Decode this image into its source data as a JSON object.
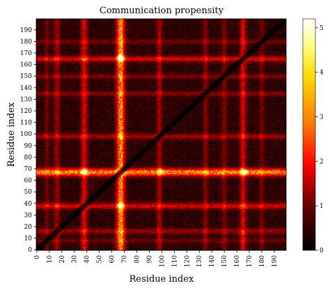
{
  "chart_data": {
    "type": "heatmap",
    "title": "Communication propensity",
    "xlabel": "Residue index",
    "ylabel": "Residue index",
    "x_range": [
      0,
      199
    ],
    "y_range": [
      0,
      199
    ],
    "xticks": [
      0,
      10,
      20,
      30,
      40,
      50,
      60,
      70,
      80,
      90,
      100,
      110,
      120,
      130,
      140,
      150,
      160,
      170,
      180,
      190
    ],
    "yticks": [
      0,
      10,
      20,
      30,
      40,
      50,
      60,
      70,
      80,
      90,
      100,
      110,
      120,
      130,
      140,
      150,
      160,
      170,
      180,
      190
    ],
    "colormap": "hot",
    "colorbar": {
      "range": [
        0,
        5.2
      ],
      "ticks": [
        0,
        1,
        2,
        3,
        4,
        5
      ]
    },
    "diagonal_value": 0,
    "bright_bands": [
      {
        "index": 67,
        "peak": 5.0,
        "width": 2.2
      },
      {
        "index": 38,
        "peak": 2.3,
        "width": 1.8
      },
      {
        "index": 165,
        "peak": 2.2,
        "width": 1.8
      },
      {
        "index": 98,
        "peak": 1.5,
        "width": 1.6
      },
      {
        "index": 16,
        "peak": 1.5,
        "width": 1.6
      },
      {
        "index": 135,
        "peak": 1.2,
        "width": 1.5
      },
      {
        "index": 150,
        "peak": 1.0,
        "width": 1.5
      },
      {
        "index": 180,
        "peak": 0.9,
        "width": 1.5
      },
      {
        "index": 8,
        "peak": 0.8,
        "width": 1.4
      }
    ],
    "hotspots": [
      {
        "x": 67,
        "y": 166,
        "value": 5.1
      },
      {
        "x": 166,
        "y": 67,
        "value": 4.2
      },
      {
        "x": 38,
        "y": 68,
        "value": 3.2
      },
      {
        "x": 67,
        "y": 38,
        "value": 3.0
      },
      {
        "x": 99,
        "y": 68,
        "value": 2.6
      }
    ]
  }
}
